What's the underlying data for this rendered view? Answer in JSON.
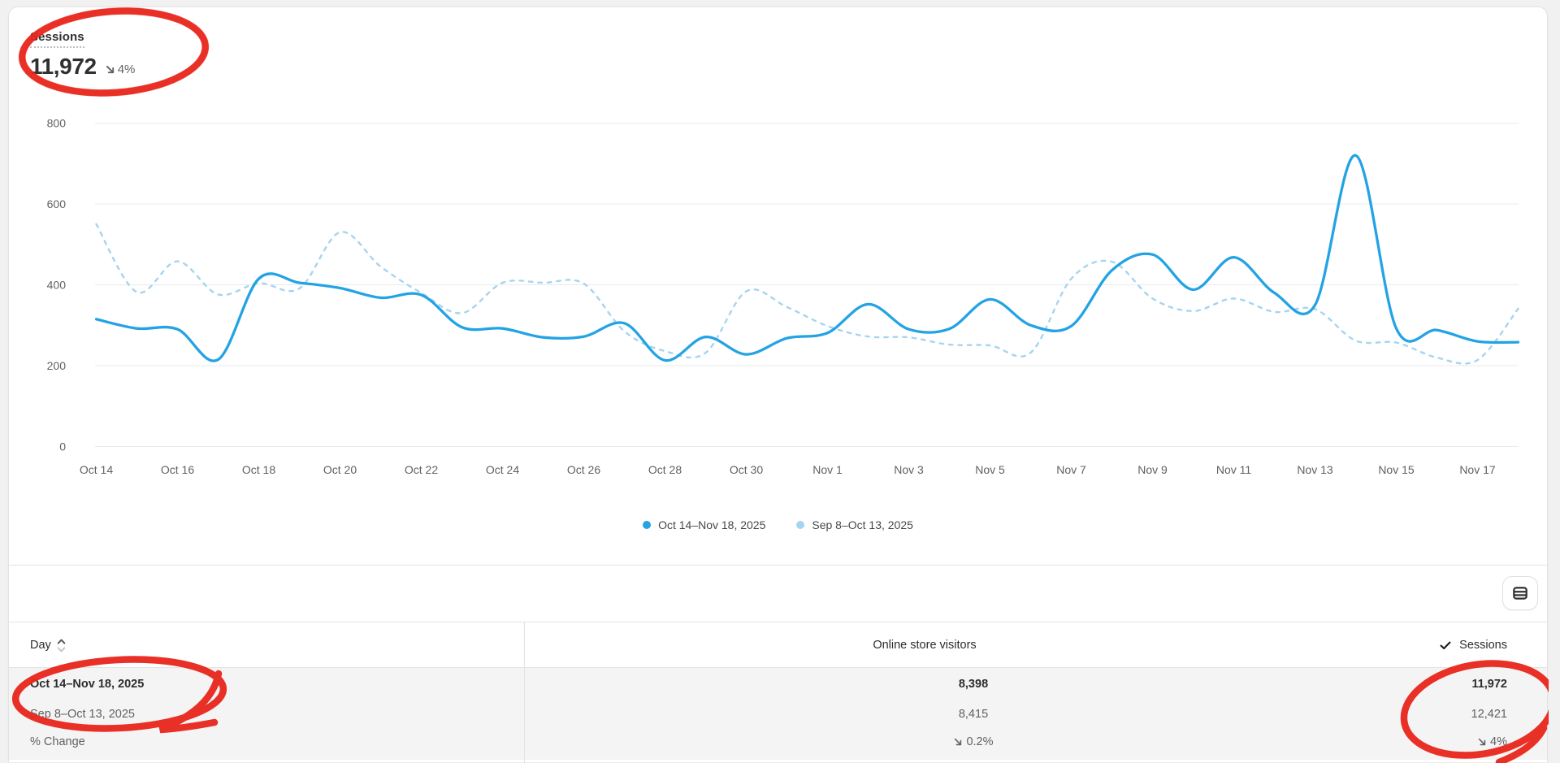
{
  "metric": {
    "title": "Sessions",
    "value": "11,972",
    "delta": "4%",
    "delta_direction": "down"
  },
  "chart_data": {
    "type": "line",
    "title": "Sessions",
    "categories": [
      "Oct 14",
      "Oct 15",
      "Oct 16",
      "Oct 17",
      "Oct 18",
      "Oct 19",
      "Oct 20",
      "Oct 21",
      "Oct 22",
      "Oct 23",
      "Oct 24",
      "Oct 25",
      "Oct 26",
      "Oct 27",
      "Oct 28",
      "Oct 29",
      "Oct 30",
      "Oct 31",
      "Nov 1",
      "Nov 2",
      "Nov 3",
      "Nov 4",
      "Nov 5",
      "Nov 6",
      "Nov 7",
      "Nov 8",
      "Nov 9",
      "Nov 10",
      "Nov 11",
      "Nov 12",
      "Nov 13",
      "Nov 14",
      "Nov 15",
      "Nov 16",
      "Nov 17",
      "Nov 18"
    ],
    "x_tick_step": 2,
    "yticks": [
      0,
      200,
      400,
      600,
      800
    ],
    "ylim": [
      0,
      800
    ],
    "grid": true,
    "legend_position": "bottom",
    "series": [
      {
        "name": "Oct 14–Nov 18, 2025",
        "style": "solid",
        "color": "#23a3e4",
        "values": [
          315,
          292,
          290,
          215,
          415,
          405,
          392,
          368,
          375,
          295,
          292,
          270,
          272,
          305,
          213,
          271,
          228,
          268,
          281,
          352,
          290,
          291,
          364,
          300,
          298,
          436,
          475,
          388,
          468,
          380,
          350,
          720,
          292,
          288,
          260,
          258
        ]
      },
      {
        "name": "Sep 8–Oct 13, 2025",
        "style": "dashed",
        "color": "#a6d4f0",
        "values": [
          550,
          382,
          458,
          376,
          404,
          391,
          530,
          445,
          380,
          330,
          405,
          405,
          403,
          285,
          236,
          232,
          384,
          345,
          298,
          272,
          270,
          252,
          250,
          232,
          415,
          457,
          366,
          335,
          366,
          333,
          340,
          262,
          257,
          220,
          214,
          341
        ]
      }
    ]
  },
  "axis": {
    "text_color": "#616161",
    "grid_color": "#ebebeb"
  },
  "table": {
    "columns": [
      {
        "label": "Day",
        "sortable": true
      },
      {
        "label": "Online store visitors"
      },
      {
        "label": "Sessions",
        "selected": true
      }
    ],
    "rows": [
      {
        "day": "Oct 14–Nov 18, 2025",
        "visitors": "8,398",
        "sessions": "11,972",
        "emphasized": true
      },
      {
        "day": "Sep 8–Oct 13, 2025",
        "visitors": "8,415",
        "sessions": "12,421"
      },
      {
        "day": "% Change",
        "visitors": "0.2%",
        "sessions": "4%",
        "visitors_direction": "down",
        "sessions_direction": "down"
      }
    ]
  },
  "annotations": {
    "color": "#e8251b"
  }
}
